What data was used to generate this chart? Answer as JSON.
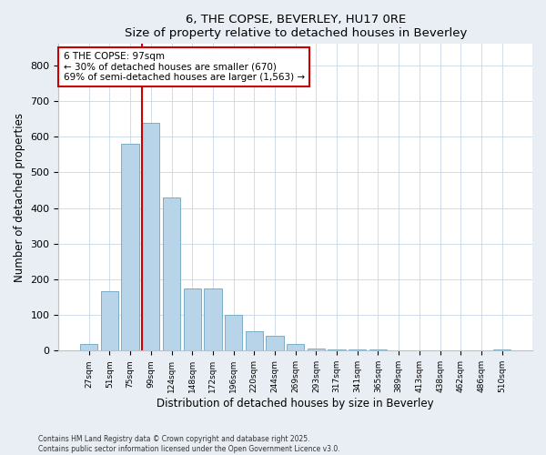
{
  "title1": "6, THE COPSE, BEVERLEY, HU17 0RE",
  "title2": "Size of property relative to detached houses in Beverley",
  "xlabel": "Distribution of detached houses by size in Beverley",
  "ylabel": "Number of detached properties",
  "categories": [
    "27sqm",
    "51sqm",
    "75sqm",
    "99sqm",
    "124sqm",
    "148sqm",
    "172sqm",
    "196sqm",
    "220sqm",
    "244sqm",
    "269sqm",
    "293sqm",
    "317sqm",
    "341sqm",
    "365sqm",
    "389sqm",
    "413sqm",
    "438sqm",
    "462sqm",
    "486sqm",
    "510sqm"
  ],
  "values": [
    18,
    168,
    580,
    638,
    430,
    175,
    175,
    100,
    55,
    42,
    18,
    5,
    3,
    3,
    3,
    0,
    0,
    0,
    0,
    0,
    3
  ],
  "bar_color": "#b8d4e8",
  "bar_edge_color": "#7aaec8",
  "vline_color": "#cc0000",
  "annotation_title": "6 THE COPSE: 97sqm",
  "annotation_line2": "← 30% of detached houses are smaller (670)",
  "annotation_line3": "69% of semi-detached houses are larger (1,563) →",
  "annotation_box_color": "#cc0000",
  "ylim": [
    0,
    860
  ],
  "yticks": [
    0,
    100,
    200,
    300,
    400,
    500,
    600,
    700,
    800
  ],
  "footer1": "Contains HM Land Registry data © Crown copyright and database right 2025.",
  "footer2": "Contains public sector information licensed under the Open Government Licence v3.0.",
  "bg_color": "#e8eef4",
  "plot_bg_color": "#ffffff"
}
